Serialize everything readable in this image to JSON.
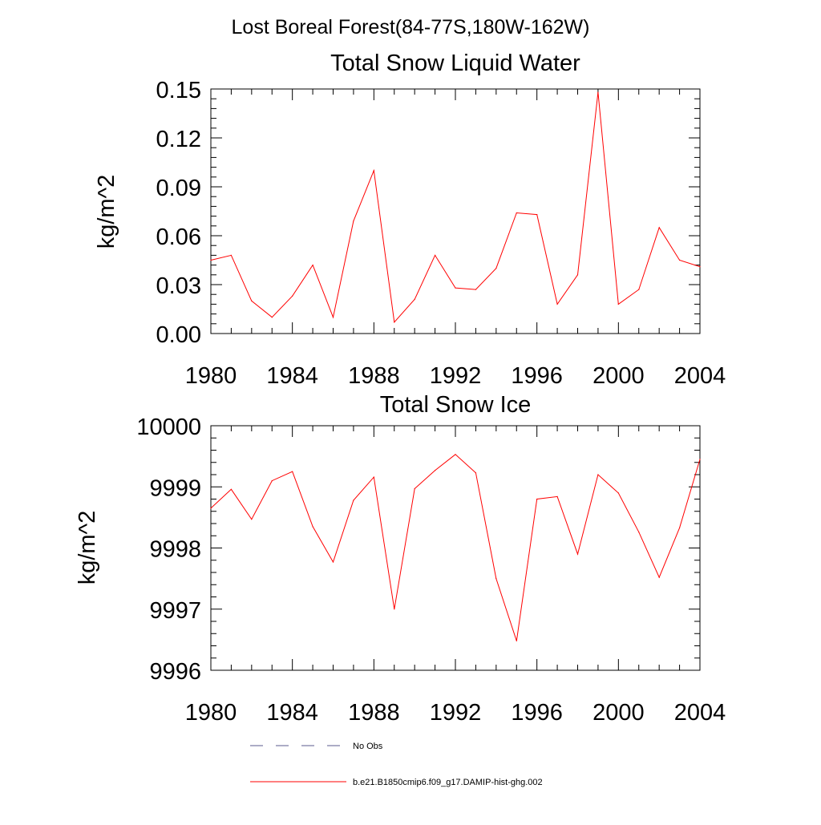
{
  "figure_title": "Lost Boreal Forest(84-77S,180W-162W)",
  "chart_data": [
    {
      "type": "line",
      "title": "Total Snow Liquid Water",
      "xlabel": "",
      "ylabel": "kg/m^2",
      "xlim": [
        1980,
        2004
      ],
      "ylim": [
        0.0,
        0.15
      ],
      "xticks": [
        "1980",
        "1984",
        "1988",
        "1992",
        "1996",
        "2000",
        "2004"
      ],
      "yticks": [
        "0.00",
        "0.03",
        "0.06",
        "0.09",
        "0.12",
        "0.15"
      ],
      "grid": false,
      "x": [
        1980,
        1981,
        1982,
        1983,
        1984,
        1985,
        1986,
        1987,
        1988,
        1989,
        1990,
        1991,
        1992,
        1993,
        1994,
        1995,
        1996,
        1997,
        1998,
        1999,
        2000,
        2001,
        2002,
        2003,
        2004
      ],
      "series": [
        {
          "name": "b.e21.B1850cmip6.f09_g17.DAMIP-hist-ghg.002",
          "color": "#ff0000",
          "values": [
            0.045,
            0.048,
            0.02,
            0.01,
            0.023,
            0.042,
            0.01,
            0.069,
            0.1,
            0.007,
            0.021,
            0.048,
            0.028,
            0.027,
            0.04,
            0.074,
            0.073,
            0.018,
            0.036,
            0.148,
            0.018,
            0.027,
            0.065,
            0.045,
            0.041
          ]
        }
      ]
    },
    {
      "type": "line",
      "title": "Total Snow Ice",
      "xlabel": "",
      "ylabel": "kg/m^2",
      "xlim": [
        1980,
        2004
      ],
      "ylim": [
        9996,
        10000
      ],
      "xticks": [
        "1980",
        "1984",
        "1988",
        "1992",
        "1996",
        "2000",
        "2004"
      ],
      "yticks": [
        "9996",
        "9997",
        "9998",
        "9999",
        "10000"
      ],
      "grid": false,
      "x": [
        1980,
        1981,
        1982,
        1983,
        1984,
        1985,
        1986,
        1987,
        1988,
        1989,
        1990,
        1991,
        1992,
        1993,
        1994,
        1995,
        1996,
        1997,
        1998,
        1999,
        2000,
        2001,
        2002,
        2003,
        2004
      ],
      "series": [
        {
          "name": "b.e21.B1850cmip6.f09_g17.DAMIP-hist-ghg.002",
          "color": "#ff0000",
          "values": [
            9998.65,
            9998.96,
            9998.47,
            9999.1,
            9999.25,
            9998.35,
            9997.77,
            9998.78,
            9999.16,
            9997.0,
            9998.97,
            9999.27,
            9999.53,
            9999.23,
            9997.5,
            9996.48,
            9998.8,
            9998.84,
            9997.9,
            9999.2,
            9998.9,
            9998.26,
            9997.52,
            9998.33,
            9999.45
          ]
        }
      ]
    }
  ],
  "legend": [
    {
      "label": "No Obs",
      "style": "dashed",
      "color": "#5a5a8c"
    },
    {
      "label": "b.e21.B1850cmip6.f09_g17.DAMIP-hist-ghg.002",
      "style": "solid",
      "color": "#ff0000"
    }
  ]
}
